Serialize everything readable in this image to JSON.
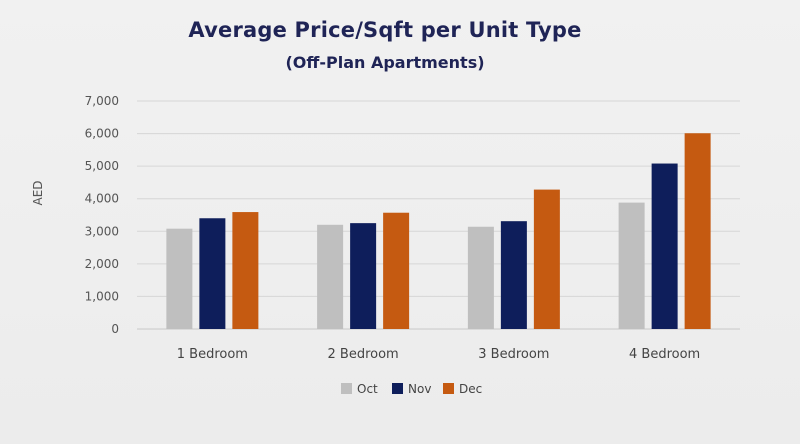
{
  "chart_data": {
    "type": "bar",
    "title": "Average Price/Sqft per Unit Type",
    "subtitle": "(Off-Plan Apartments)",
    "xlabel": "",
    "ylabel": "AED",
    "ylim": [
      0,
      7000
    ],
    "yticks": [
      "0",
      "1,000",
      "2,000",
      "3,000",
      "4,000",
      "5,000",
      "6,000",
      "7,000"
    ],
    "categories": [
      "1 Bedroom",
      "2 Bedroom",
      "3 Bedroom",
      "4 Bedroom"
    ],
    "series": [
      {
        "name": "Oct",
        "color": "#bfbfbf",
        "values": [
          3080,
          3200,
          3140,
          3880
        ]
      },
      {
        "name": "Nov",
        "color": "#0e1e5b",
        "values": [
          3400,
          3250,
          3310,
          5080
        ]
      },
      {
        "name": "Dec",
        "color": "#c55a11",
        "values": [
          3590,
          3570,
          4280,
          6010
        ]
      }
    ],
    "grid": true,
    "legend": "bottom"
  }
}
